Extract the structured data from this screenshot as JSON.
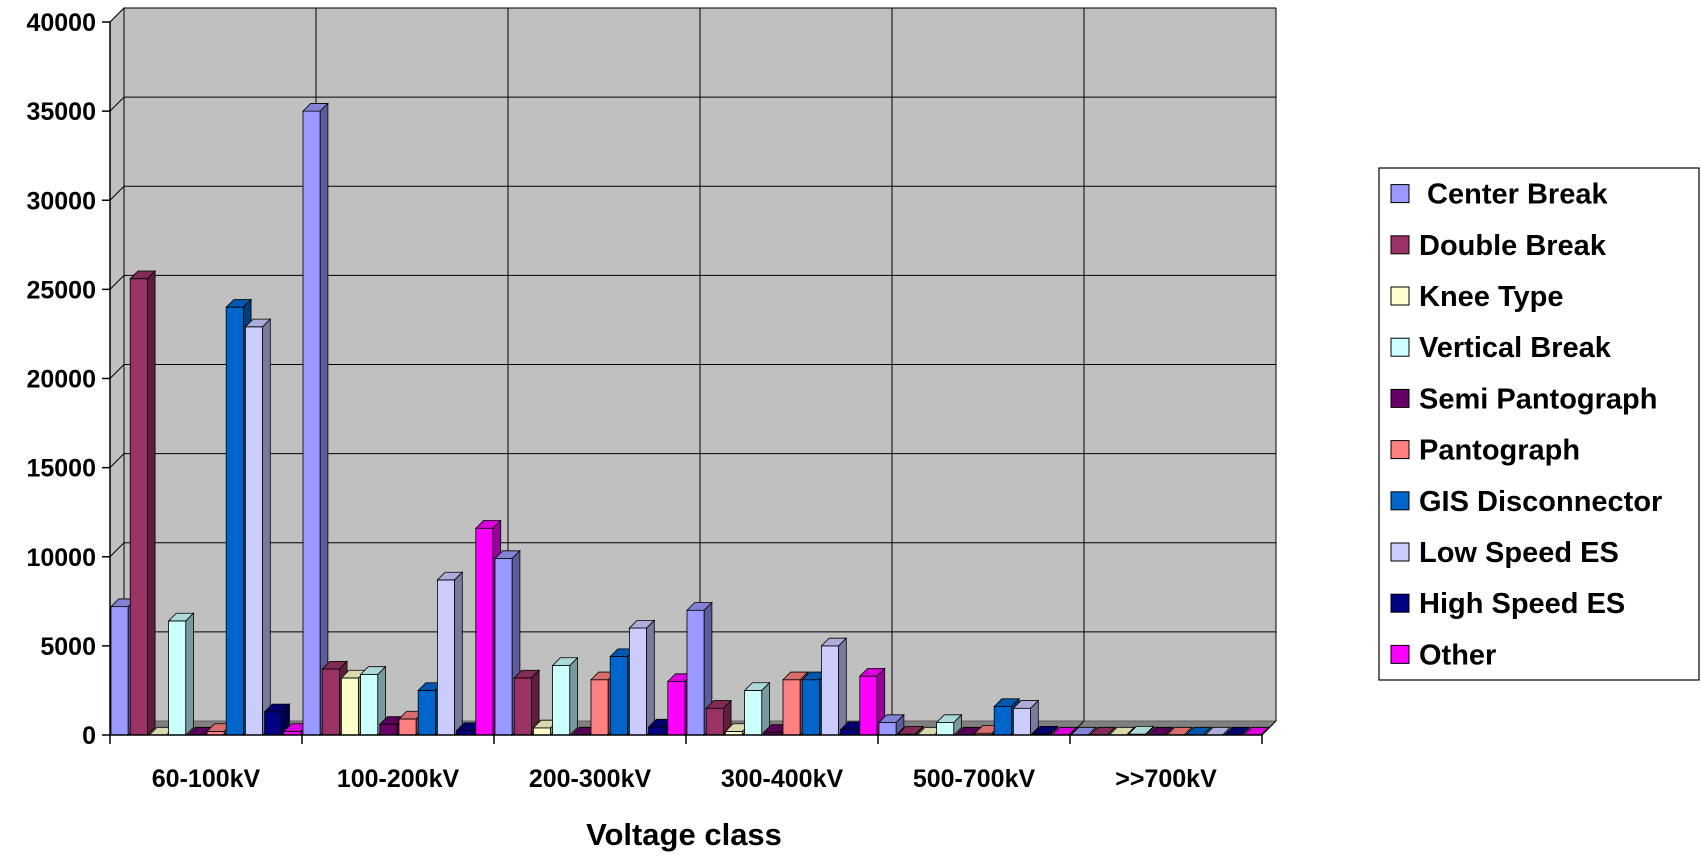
{
  "chart_data": {
    "type": "bar",
    "title": "",
    "xlabel": "Voltage class",
    "ylabel": "",
    "ylim": [
      0,
      40000
    ],
    "yticks": [
      "0",
      "5000",
      "10000",
      "15000",
      "20000",
      "25000",
      "30000",
      "35000",
      "40000"
    ],
    "grid": true,
    "legend_position": "right",
    "categories": [
      "60-100kV",
      "100-200kV",
      "200-300kV",
      "300-400kV",
      "500-700kV",
      ">>700kV"
    ],
    "series": [
      {
        "name": " Center Break",
        "color": "#9999FF",
        "values": [
          7200,
          35000,
          9900,
          7000,
          700,
          0
        ]
      },
      {
        "name": "Double Break",
        "color": "#993366",
        "values": [
          25600,
          3700,
          3200,
          1500,
          50,
          0
        ]
      },
      {
        "name": "Knee Type",
        "color": "#FFFFCC",
        "values": [
          0,
          3200,
          400,
          200,
          0,
          0
        ]
      },
      {
        "name": "Vertical Break",
        "color": "#CCFFFF",
        "values": [
          6400,
          3400,
          3900,
          2500,
          700,
          50
        ]
      },
      {
        "name": "Semi Pantograph",
        "color": "#660066",
        "values": [
          0,
          600,
          0,
          150,
          0,
          0
        ]
      },
      {
        "name": "Pantograph",
        "color": "#FF8080",
        "values": [
          200,
          900,
          3100,
          3100,
          100,
          0
        ]
      },
      {
        "name": "GIS Disconnector",
        "color": "#0066CC",
        "values": [
          24000,
          2500,
          4400,
          3100,
          1600,
          0
        ]
      },
      {
        "name": "Low Speed ES",
        "color": "#CCCCFF",
        "values": [
          22900,
          8700,
          6000,
          5000,
          1500,
          0
        ]
      },
      {
        "name": "High Speed ES",
        "color": "#000080",
        "values": [
          1300,
          250,
          450,
          300,
          50,
          0
        ]
      },
      {
        "name": "Other",
        "color": "#FF00FF",
        "values": [
          200,
          11600,
          3000,
          3300,
          0,
          0
        ]
      }
    ],
    "colors": {
      "plot_wall": "#C0C0C0",
      "plot_floor": "#808080",
      "gridline": "#000000"
    }
  }
}
